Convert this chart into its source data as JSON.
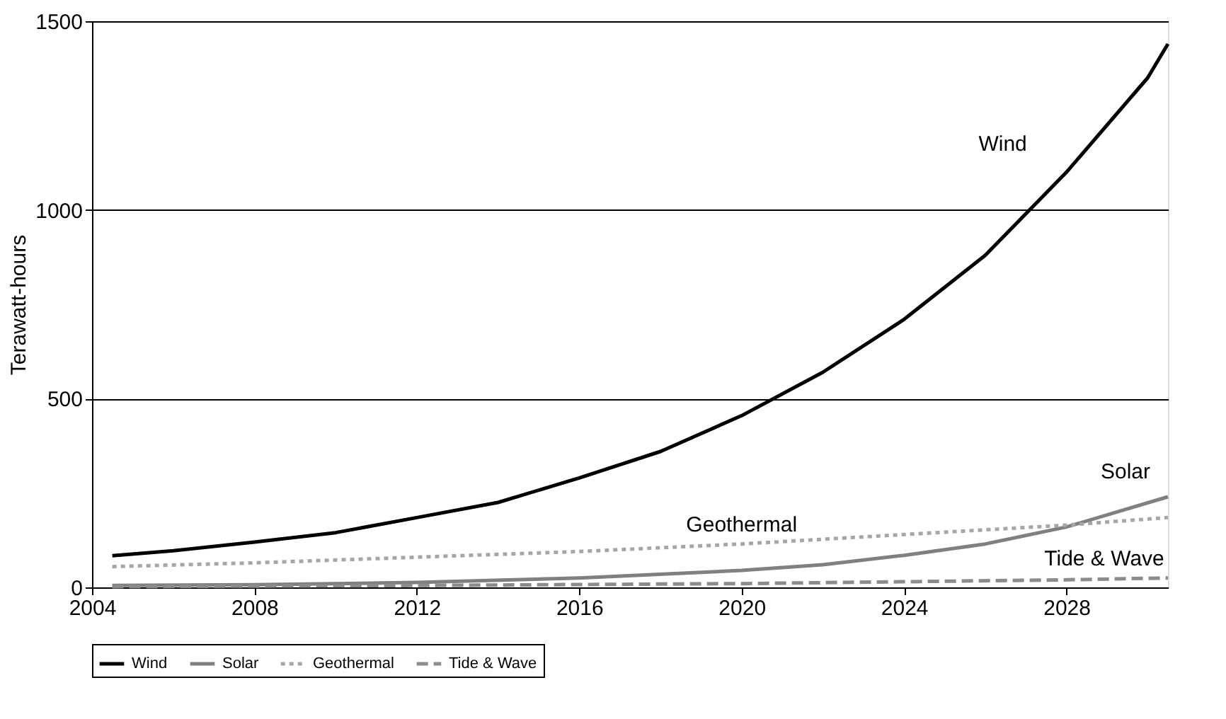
{
  "chart_data": {
    "type": "line",
    "ylabel": "Terawatt-hours",
    "xlim": [
      2004,
      2030.5
    ],
    "xticks": [
      2004,
      2008,
      2012,
      2016,
      2020,
      2024,
      2028
    ],
    "ylim": [
      0,
      1500
    ],
    "yticks": [
      0,
      500,
      {
        "value": 1000,
        "label": "1000"
      },
      {
        "value": 1500,
        "label": "1500"
      }
    ],
    "grid": "y",
    "legend": "bottom",
    "marker": "none",
    "series": [
      {
        "name": "Wind",
        "color": "#000000",
        "line_style": "solid",
        "x": [
          2004.5,
          2006,
          2008,
          2010,
          2012,
          2014,
          2016,
          2018,
          2020,
          2022,
          2024,
          2026,
          2028,
          2030,
          2030.5
        ],
        "values": [
          84,
          97,
          120,
          145,
          185,
          225,
          290,
          360,
          455,
          570,
          710,
          880,
          1100,
          1350,
          1440
        ]
      },
      {
        "name": "Solar",
        "color": "#808080",
        "line_style": "solid",
        "x": [
          2004.5,
          2008,
          2012,
          2016,
          2020,
          2022,
          2024,
          2026,
          2028,
          2030.5
        ],
        "values": [
          5,
          7,
          13,
          25,
          45,
          60,
          85,
          115,
          160,
          240
        ]
      },
      {
        "name": "Geothermal",
        "color": "#a6a6a6",
        "line_style": "dotted",
        "x": [
          2004.5,
          2008,
          2012,
          2016,
          2020,
          2024,
          2028,
          2030.5
        ],
        "values": [
          55,
          65,
          80,
          95,
          115,
          140,
          165,
          185
        ]
      },
      {
        "name": "Tide & Wave",
        "color": "#8c8c8c",
        "line_style": "dashed",
        "x": [
          2004.5,
          2012,
          2020,
          2028,
          2030.5
        ],
        "values": [
          2,
          5,
          10,
          20,
          25
        ]
      }
    ]
  }
}
